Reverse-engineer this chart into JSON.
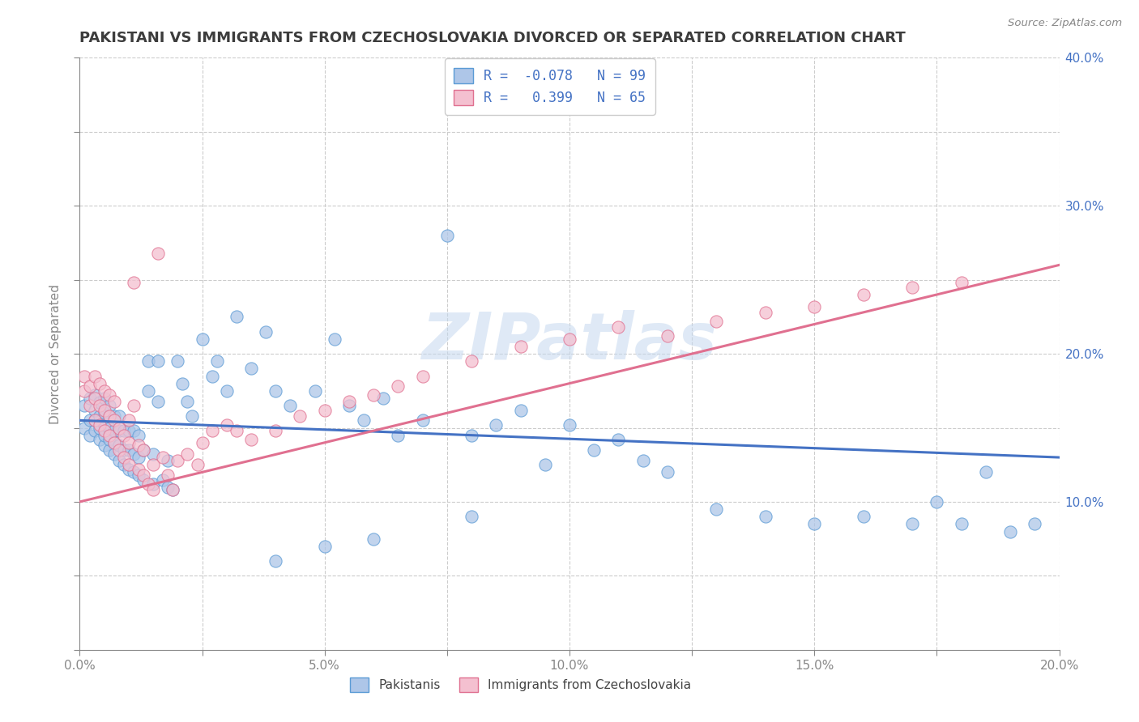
{
  "title": "PAKISTANI VS IMMIGRANTS FROM CZECHOSLOVAKIA DIVORCED OR SEPARATED CORRELATION CHART",
  "source_text": "Source: ZipAtlas.com",
  "ylabel": "Divorced or Separated",
  "xlim": [
    0.0,
    0.2
  ],
  "ylim": [
    0.0,
    0.4
  ],
  "xticks": [
    0.0,
    0.025,
    0.05,
    0.075,
    0.1,
    0.125,
    0.15,
    0.175,
    0.2
  ],
  "xtick_labels": [
    "0.0%",
    "",
    "5.0%",
    "",
    "10.0%",
    "",
    "15.0%",
    "",
    "20.0%"
  ],
  "yticks": [
    0.0,
    0.05,
    0.1,
    0.15,
    0.2,
    0.25,
    0.3,
    0.35,
    0.4
  ],
  "ytick_labels_right": [
    "",
    "",
    "10.0%",
    "",
    "20.0%",
    "",
    "30.0%",
    "",
    "40.0%"
  ],
  "series": [
    {
      "name": "Pakistanis",
      "color": "#aec6e8",
      "border_color": "#5b9bd5",
      "R": -0.078,
      "N": 99,
      "line_color": "#4472c4",
      "trend_x0": 0.0,
      "trend_y0": 0.155,
      "trend_x1": 0.2,
      "trend_y1": 0.13,
      "x": [
        0.001,
        0.001,
        0.002,
        0.002,
        0.002,
        0.003,
        0.003,
        0.003,
        0.003,
        0.004,
        0.004,
        0.004,
        0.004,
        0.005,
        0.005,
        0.005,
        0.005,
        0.005,
        0.006,
        0.006,
        0.006,
        0.006,
        0.006,
        0.007,
        0.007,
        0.007,
        0.007,
        0.008,
        0.008,
        0.008,
        0.008,
        0.009,
        0.009,
        0.009,
        0.01,
        0.01,
        0.01,
        0.011,
        0.011,
        0.011,
        0.012,
        0.012,
        0.012,
        0.013,
        0.013,
        0.014,
        0.014,
        0.015,
        0.015,
        0.016,
        0.016,
        0.017,
        0.018,
        0.018,
        0.019,
        0.02,
        0.021,
        0.022,
        0.023,
        0.025,
        0.027,
        0.028,
        0.03,
        0.032,
        0.035,
        0.038,
        0.04,
        0.043,
        0.048,
        0.052,
        0.055,
        0.058,
        0.062,
        0.065,
        0.07,
        0.075,
        0.08,
        0.085,
        0.09,
        0.095,
        0.1,
        0.105,
        0.11,
        0.115,
        0.12,
        0.13,
        0.14,
        0.15,
        0.16,
        0.17,
        0.175,
        0.18,
        0.185,
        0.19,
        0.195,
        0.08,
        0.04,
        0.06,
        0.05
      ],
      "y": [
        0.15,
        0.165,
        0.145,
        0.155,
        0.17,
        0.148,
        0.155,
        0.162,
        0.172,
        0.142,
        0.15,
        0.158,
        0.167,
        0.138,
        0.145,
        0.152,
        0.16,
        0.17,
        0.135,
        0.142,
        0.15,
        0.158,
        0.165,
        0.132,
        0.14,
        0.148,
        0.158,
        0.128,
        0.138,
        0.148,
        0.158,
        0.125,
        0.135,
        0.148,
        0.122,
        0.135,
        0.148,
        0.12,
        0.132,
        0.148,
        0.118,
        0.13,
        0.145,
        0.115,
        0.135,
        0.175,
        0.195,
        0.112,
        0.132,
        0.168,
        0.195,
        0.115,
        0.11,
        0.128,
        0.108,
        0.195,
        0.18,
        0.168,
        0.158,
        0.21,
        0.185,
        0.195,
        0.175,
        0.225,
        0.19,
        0.215,
        0.175,
        0.165,
        0.175,
        0.21,
        0.165,
        0.155,
        0.17,
        0.145,
        0.155,
        0.28,
        0.145,
        0.152,
        0.162,
        0.125,
        0.152,
        0.135,
        0.142,
        0.128,
        0.12,
        0.095,
        0.09,
        0.085,
        0.09,
        0.085,
        0.1,
        0.085,
        0.12,
        0.08,
        0.085,
        0.09,
        0.06,
        0.075,
        0.07
      ]
    },
    {
      "name": "Immigrants from Czechoslovakia",
      "color": "#f4c0d0",
      "border_color": "#e07090",
      "R": 0.399,
      "N": 65,
      "line_color": "#e07090",
      "trend_x0": 0.0,
      "trend_y0": 0.1,
      "trend_x1": 0.2,
      "trend_y1": 0.26,
      "x": [
        0.001,
        0.001,
        0.002,
        0.002,
        0.003,
        0.003,
        0.003,
        0.004,
        0.004,
        0.004,
        0.005,
        0.005,
        0.005,
        0.006,
        0.006,
        0.006,
        0.007,
        0.007,
        0.007,
        0.008,
        0.008,
        0.009,
        0.009,
        0.01,
        0.01,
        0.01,
        0.011,
        0.011,
        0.012,
        0.012,
        0.013,
        0.013,
        0.014,
        0.015,
        0.015,
        0.016,
        0.017,
        0.018,
        0.019,
        0.02,
        0.022,
        0.024,
        0.025,
        0.027,
        0.03,
        0.032,
        0.035,
        0.04,
        0.045,
        0.05,
        0.055,
        0.06,
        0.065,
        0.07,
        0.08,
        0.09,
        0.1,
        0.11,
        0.12,
        0.13,
        0.14,
        0.15,
        0.16,
        0.17,
        0.18
      ],
      "y": [
        0.175,
        0.185,
        0.165,
        0.178,
        0.155,
        0.17,
        0.185,
        0.152,
        0.165,
        0.18,
        0.148,
        0.162,
        0.175,
        0.145,
        0.158,
        0.172,
        0.14,
        0.155,
        0.168,
        0.135,
        0.15,
        0.13,
        0.145,
        0.125,
        0.14,
        0.155,
        0.248,
        0.165,
        0.122,
        0.138,
        0.118,
        0.135,
        0.112,
        0.108,
        0.125,
        0.268,
        0.13,
        0.118,
        0.108,
        0.128,
        0.132,
        0.125,
        0.14,
        0.148,
        0.152,
        0.148,
        0.142,
        0.148,
        0.158,
        0.162,
        0.168,
        0.172,
        0.178,
        0.185,
        0.195,
        0.205,
        0.21,
        0.218,
        0.212,
        0.222,
        0.228,
        0.232,
        0.24,
        0.245,
        0.248
      ]
    }
  ],
  "watermark_text": "ZIPatlas",
  "title_color": "#3c3c3c",
  "axis_color": "#888888",
  "grid_color": "#cccccc",
  "right_axis_color": "#4472c4",
  "background_color": "#ffffff"
}
